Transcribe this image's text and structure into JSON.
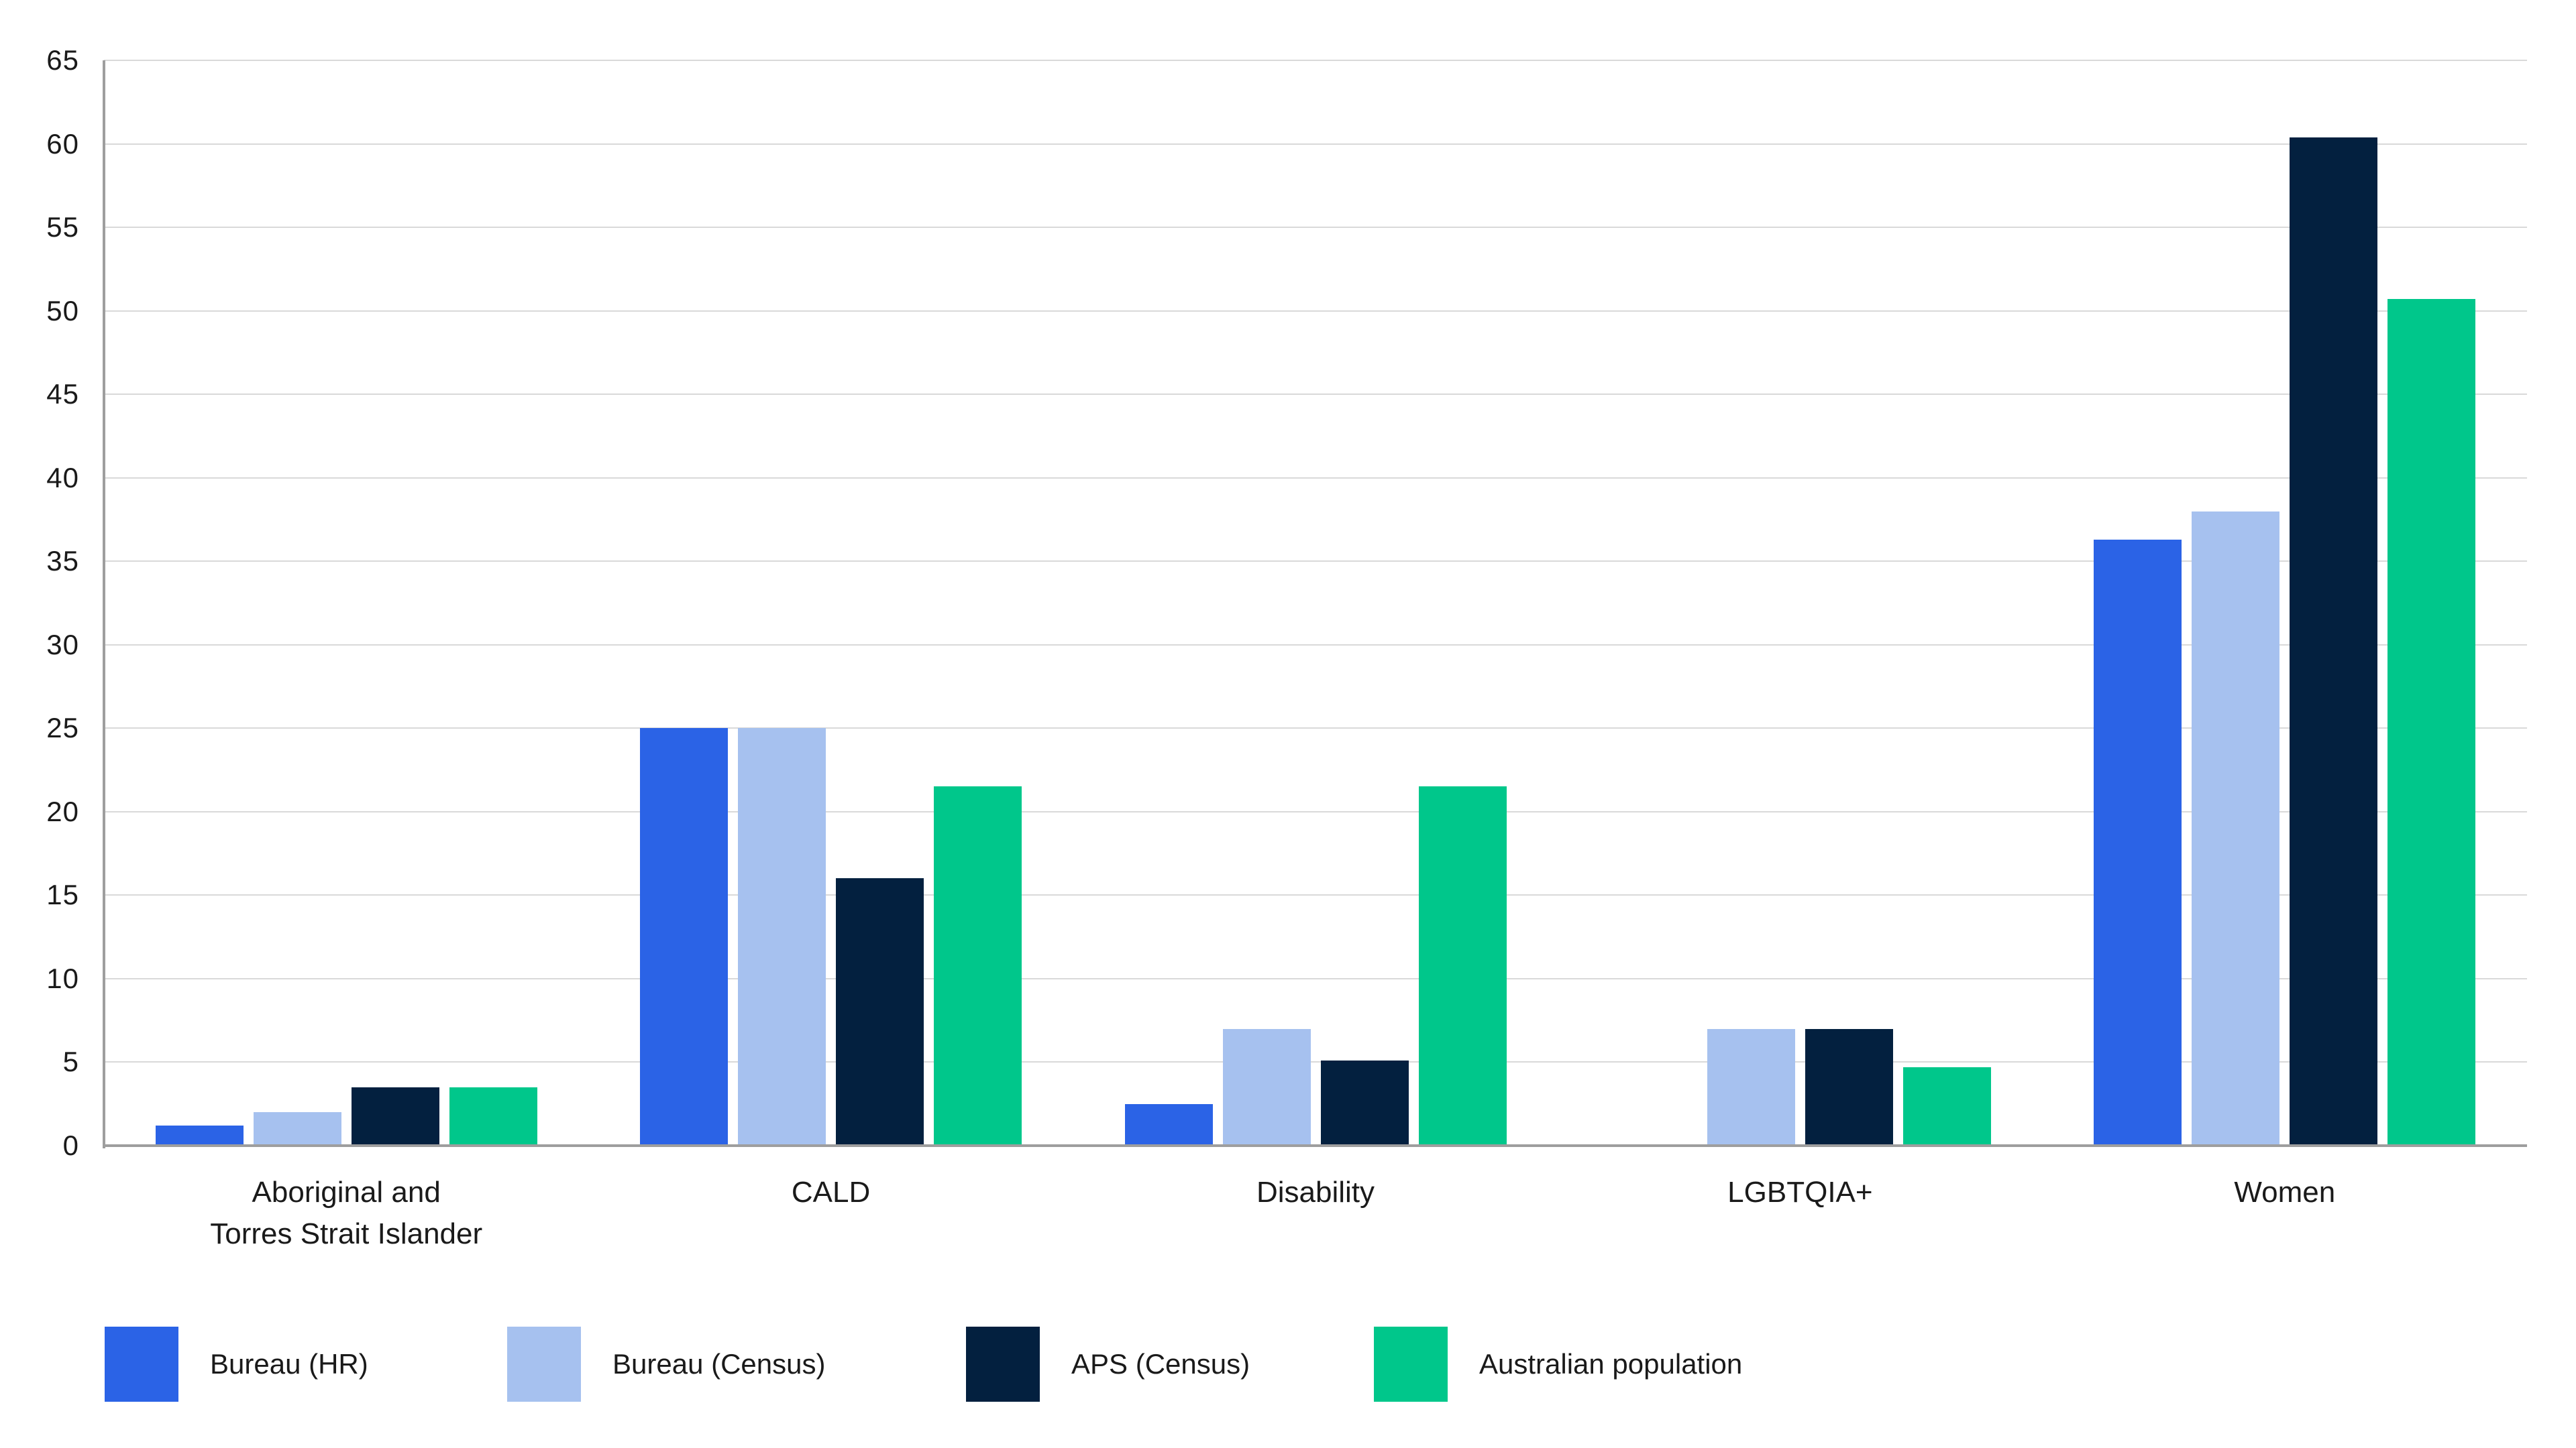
{
  "chart_data": {
    "type": "bar",
    "title": "",
    "xlabel": "",
    "ylabel": "",
    "grid": true,
    "legend_position": "bottom-left",
    "categories": [
      "Aboriginal and\nTorres Strait Islander",
      "CALD",
      "Disability",
      "LGBTQIA+",
      "Women"
    ],
    "series": [
      {
        "name": "Bureau (HR)",
        "color": "#2B63E6",
        "values": [
          1.2,
          25,
          2.5,
          null,
          36.3
        ]
      },
      {
        "name": "Bureau (Census)",
        "color": "#A6C1EF",
        "values": [
          2,
          25,
          7,
          7,
          38
        ]
      },
      {
        "name": "APS (Census)",
        "color": "#03203F",
        "values": [
          3.5,
          16,
          5.1,
          7,
          60.4
        ]
      },
      {
        "name": "Australian population",
        "color": "#00C78B",
        "values": [
          3.5,
          21.5,
          21.5,
          4.7,
          50.7
        ]
      }
    ],
    "y_axis": {
      "min": 0,
      "max": 65,
      "step": 5,
      "ticks": [
        0,
        5,
        10,
        15,
        20,
        25,
        30,
        35,
        40,
        45,
        50,
        55,
        60,
        65
      ]
    },
    "colors": {
      "gridline": "#D9D9D9",
      "axis_line": "#9E9E9E",
      "text": "#1A1A1A",
      "background": "#FFFFFF"
    }
  }
}
